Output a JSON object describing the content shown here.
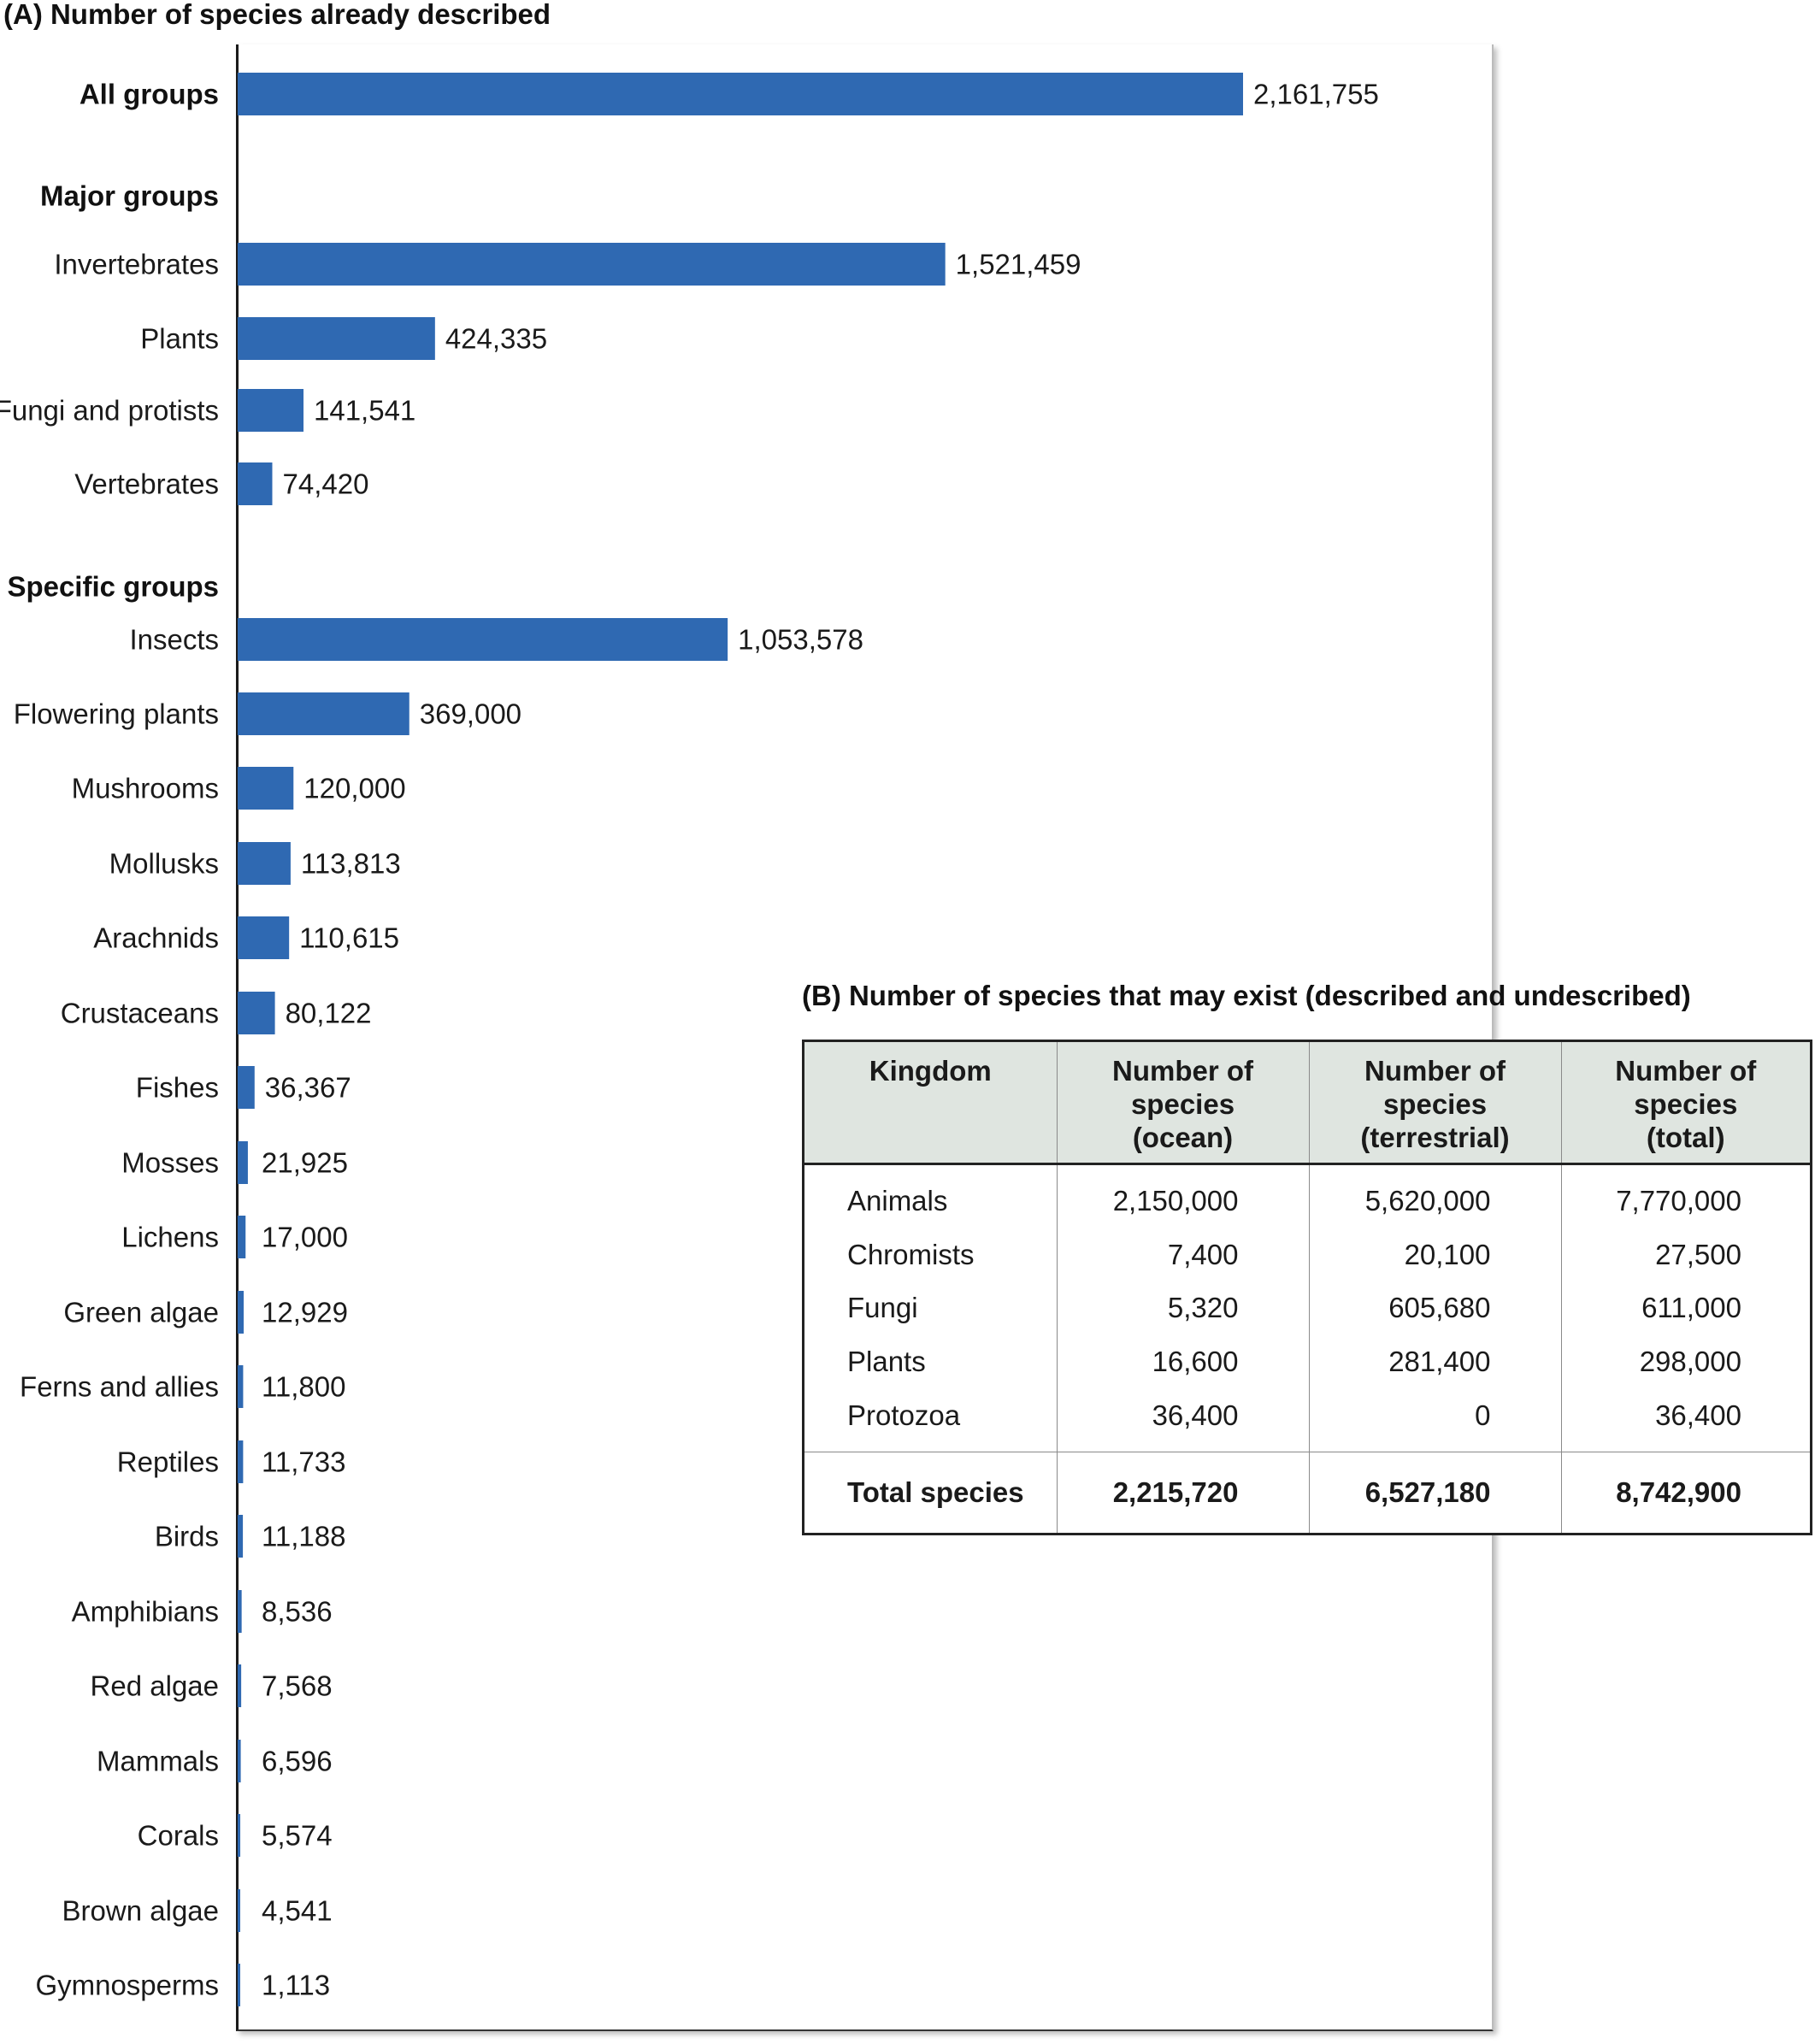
{
  "panel_a": {
    "title": "(A)  Number of species already described"
  },
  "panel_b": {
    "title": "(B)  Number of species that may exist (described and undescribed)"
  },
  "chart_data": [
    {
      "type": "bar",
      "orientation": "horizontal",
      "title": "(A)  Number of species already described",
      "xlabel": "",
      "ylabel": "",
      "xlim": [
        0,
        2500000
      ],
      "grid": false,
      "bar_color": "#2f69b2",
      "rows": [
        {
          "label": "All groups",
          "value": 2161755,
          "value_label": "2,161,755",
          "bold": true
        },
        {
          "label": "Major groups",
          "value": null,
          "value_label": "",
          "heading": true
        },
        {
          "label": "Invertebrates",
          "value": 1521459,
          "value_label": "1,521,459"
        },
        {
          "label": "Plants",
          "value": 424335,
          "value_label": "424,335"
        },
        {
          "label": "Fungi and protists",
          "value": 141541,
          "value_label": "141,541"
        },
        {
          "label": "Vertebrates",
          "value": 74420,
          "value_label": "74,420"
        },
        {
          "label": "Specific groups",
          "value": null,
          "value_label": "",
          "heading": true
        },
        {
          "label": "Insects",
          "value": 1053578,
          "value_label": "1,053,578"
        },
        {
          "label": "Flowering plants",
          "value": 369000,
          "value_label": "369,000"
        },
        {
          "label": "Mushrooms",
          "value": 120000,
          "value_label": "120,000"
        },
        {
          "label": "Mollusks",
          "value": 113813,
          "value_label": "113,813"
        },
        {
          "label": "Arachnids",
          "value": 110615,
          "value_label": "110,615"
        },
        {
          "label": "Crustaceans",
          "value": 80122,
          "value_label": "80,122"
        },
        {
          "label": "Fishes",
          "value": 36367,
          "value_label": "36,367"
        },
        {
          "label": "Mosses",
          "value": 21925,
          "value_label": "21,925"
        },
        {
          "label": "Lichens",
          "value": 17000,
          "value_label": "17,000"
        },
        {
          "label": "Green algae",
          "value": 12929,
          "value_label": "12,929"
        },
        {
          "label": "Ferns and allies",
          "value": 11800,
          "value_label": "11,800"
        },
        {
          "label": "Reptiles",
          "value": 11733,
          "value_label": "11,733"
        },
        {
          "label": "Birds",
          "value": 11188,
          "value_label": "11,188"
        },
        {
          "label": "Amphibians",
          "value": 8536,
          "value_label": "8,536"
        },
        {
          "label": "Red algae",
          "value": 7568,
          "value_label": "7,568"
        },
        {
          "label": "Mammals",
          "value": 6596,
          "value_label": "6,596"
        },
        {
          "label": "Corals",
          "value": 5574,
          "value_label": "5,574"
        },
        {
          "label": "Brown algae",
          "value": 4541,
          "value_label": "4,541"
        },
        {
          "label": "Gymnosperms",
          "value": 1113,
          "value_label": "1,113"
        }
      ]
    },
    {
      "type": "table",
      "title": "(B)  Number of species that may exist (described and undescribed)",
      "columns": [
        "Kingdom",
        "Number of species (ocean)",
        "Number of species (terrestrial)",
        "Number of species (total)"
      ],
      "rows": [
        [
          "Animals",
          "2,150,000",
          "5,620,000",
          "7,770,000"
        ],
        [
          "Chromists",
          "7,400",
          "20,100",
          "27,500"
        ],
        [
          "Fungi",
          "5,320",
          "605,680",
          "611,000"
        ],
        [
          "Plants",
          "16,600",
          "281,400",
          "298,000"
        ],
        [
          "Protozoa",
          "36,400",
          "0",
          "36,400"
        ]
      ],
      "total_row": [
        "Total species",
        "2,215,720",
        "6,527,180",
        "8,742,900"
      ]
    }
  ],
  "table": {
    "header": {
      "kingdom": "Kingdom",
      "ocean_l1": "Number of",
      "ocean_l2": "species",
      "ocean_l3": "(ocean)",
      "terr_l1": "Number of",
      "terr_l2": "species",
      "terr_l3": "(terrestrial)",
      "total_l1": "Number of",
      "total_l2": "species",
      "total_l3": "(total)"
    },
    "rows": [
      {
        "kingdom": "Animals",
        "ocean": "2,150,000",
        "terrestrial": "5,620,000",
        "total": "7,770,000"
      },
      {
        "kingdom": "Chromists",
        "ocean": "7,400",
        "terrestrial": "20,100",
        "total": "27,500"
      },
      {
        "kingdom": "Fungi",
        "ocean": "5,320",
        "terrestrial": "605,680",
        "total": "611,000"
      },
      {
        "kingdom": "Plants",
        "ocean": "16,600",
        "terrestrial": "281,400",
        "total": "298,000"
      },
      {
        "kingdom": "Protozoa",
        "ocean": "36,400",
        "terrestrial": "0",
        "total": "36,400"
      }
    ],
    "total": {
      "kingdom": "Total species",
      "ocean": "2,215,720",
      "terrestrial": "6,527,180",
      "total": "8,742,900"
    }
  }
}
